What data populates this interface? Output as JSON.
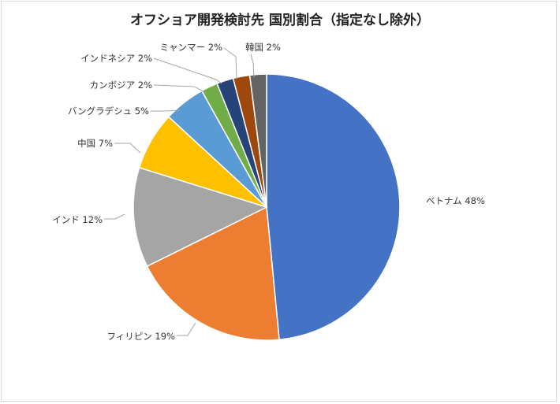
{
  "chart_data": {
    "type": "pie",
    "title": "オフショア開発検討先 国別割合（指定なし除外）",
    "slices": [
      {
        "label": "ベトナム",
        "value": 48,
        "display": "48%",
        "color": "#4472c4"
      },
      {
        "label": "フィリピン",
        "value": 19,
        "display": "19%",
        "color": "#ed7d31"
      },
      {
        "label": "インド",
        "value": 12,
        "display": "12%",
        "color": "#a5a5a5"
      },
      {
        "label": "中国",
        "value": 7,
        "display": "7%",
        "color": "#ffc000"
      },
      {
        "label": "バングラデシュ",
        "value": 5,
        "display": "5%",
        "color": "#5b9bd5"
      },
      {
        "label": "カンボジア",
        "value": 2,
        "display": "2%",
        "color": "#70ad47"
      },
      {
        "label": "インドネシア",
        "value": 2,
        "display": "2%",
        "color": "#264478"
      },
      {
        "label": "ミャンマー",
        "value": 2,
        "display": "2%",
        "color": "#9e480e"
      },
      {
        "label": "韓国",
        "value": 2,
        "display": "2%",
        "color": "#636363"
      }
    ]
  }
}
